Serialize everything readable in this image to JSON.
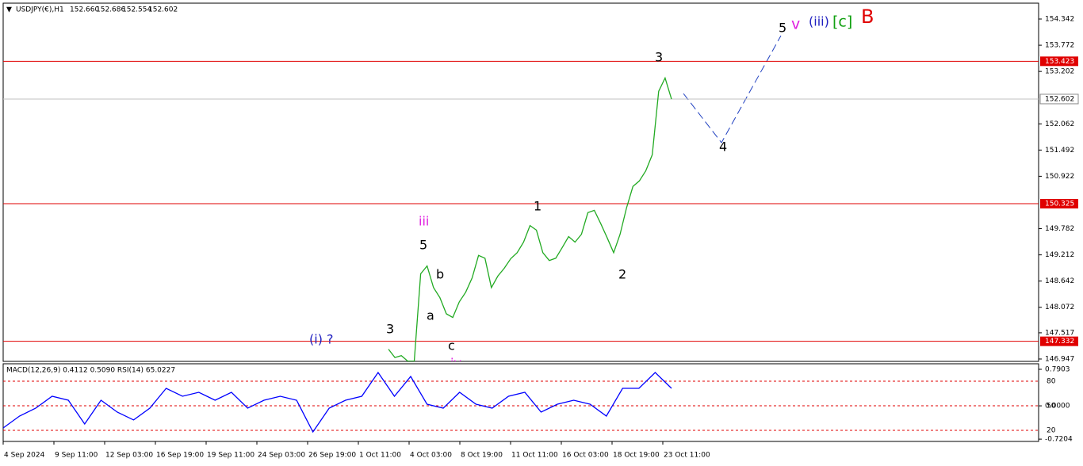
{
  "chart_data": [
    {
      "type": "line",
      "symbol": "USDJPY(€),H1",
      "quote": [
        {
          "value": 152.66,
          "label": "152.660"
        },
        {
          "value": 152.686,
          "label": "152.686"
        },
        {
          "value": 152.554,
          "label": "152.554"
        },
        {
          "value": 152.602,
          "label": "152.602"
        }
      ],
      "x_labels": [
        "4 Sep 2024",
        "9 Sep 11:00",
        "12 Sep 03:00",
        "16 Sep 19:00",
        "19 Sep 11:00",
        "24 Sep 03:00",
        "26 Sep 19:00",
        "1 Oct 11:00",
        "4 Oct 03:00",
        "8 Oct 19:00",
        "11 Oct 11:00",
        "16 Oct 03:00",
        "18 Oct 19:00",
        "23 Oct 11:00"
      ],
      "ylim": [
        146.895,
        154.687
      ],
      "yticks": [
        154.342,
        153.772,
        153.202,
        152.062,
        151.492,
        150.922,
        149.782,
        149.212,
        148.642,
        148.072,
        147.517,
        146.947
      ],
      "levels": [
        153.423,
        150.325,
        147.332
      ],
      "level_color": "#e00000",
      "current_price": 152.602,
      "series": [
        {
          "color": "#22aa22",
          "values": [
            147.16,
            146.98,
            147.02,
            146.9,
            146.9,
            148.8,
            148.97,
            148.5,
            148.28,
            147.93,
            147.85,
            148.19,
            148.4,
            148.71,
            149.2,
            149.14,
            148.5,
            148.75,
            148.92,
            149.13,
            149.26,
            149.49,
            149.85,
            149.75,
            149.26,
            149.09,
            149.14,
            149.37,
            149.61,
            149.49,
            149.66,
            150.13,
            150.18,
            149.89,
            149.58,
            149.26,
            149.66,
            150.23,
            150.7,
            150.82,
            151.04,
            151.39,
            152.77,
            153.06,
            152.6
          ]
        }
      ],
      "annotations": [
        {
          "text": "3",
          "color": "#000000"
        },
        {
          "text": "4",
          "color": "#000000"
        },
        {
          "text": "5",
          "color": "#000000"
        },
        {
          "text": "v",
          "color": "#e020e0"
        },
        {
          "text": "(iii)",
          "color": "#2020c0"
        },
        {
          "text": "[c]",
          "color": "#10a010"
        },
        {
          "text": "B",
          "color": "#e00000"
        },
        {
          "text": "1",
          "color": "#000000"
        },
        {
          "text": "2",
          "color": "#000000"
        },
        {
          "text": "iii",
          "color": "#e020e0"
        },
        {
          "text": "5",
          "color": "#000000"
        },
        {
          "text": "b",
          "color": "#000000"
        },
        {
          "text": "a",
          "color": "#000000"
        },
        {
          "text": "c",
          "color": "#000000"
        },
        {
          "text": "3",
          "color": "#000000"
        },
        {
          "text": "(i) ?",
          "color": "#2020c0"
        },
        {
          "text": "iv",
          "color": "#e020e0"
        }
      ]
    },
    {
      "type": "line",
      "title": "MACD(12,26,9) 0.4112 0.5090 RSI(14) 65.0227",
      "ylim": [
        6.4,
        101.3
      ],
      "yticks": [
        80,
        50,
        20
      ],
      "y2lim": [
        -0.77,
        0.91
      ],
      "y2ticks": [
        0.7903,
        {
          "value": 0,
          "label": "0.0000"
        },
        -0.7204
      ],
      "level_color": "#e00000",
      "series": [
        {
          "color": "#0000ff",
          "values": [
            22.9,
            37.4,
            47.1,
            61.6,
            56.8,
            27.7,
            56.8,
            42.2,
            32.6,
            47.1,
            71.3,
            61.6,
            66.4,
            56.8,
            66.4,
            47.1,
            56.8,
            61.6,
            56.8,
            18.0,
            47.1,
            56.8,
            61.6,
            90.6,
            61.6,
            85.8,
            51.9,
            47.1,
            66.4,
            51.9,
            47.1,
            61.6,
            66.4,
            42.2,
            51.9,
            56.8,
            51.9,
            37.4,
            71.3,
            71.3,
            90.6,
            71.3
          ]
        }
      ]
    }
  ]
}
